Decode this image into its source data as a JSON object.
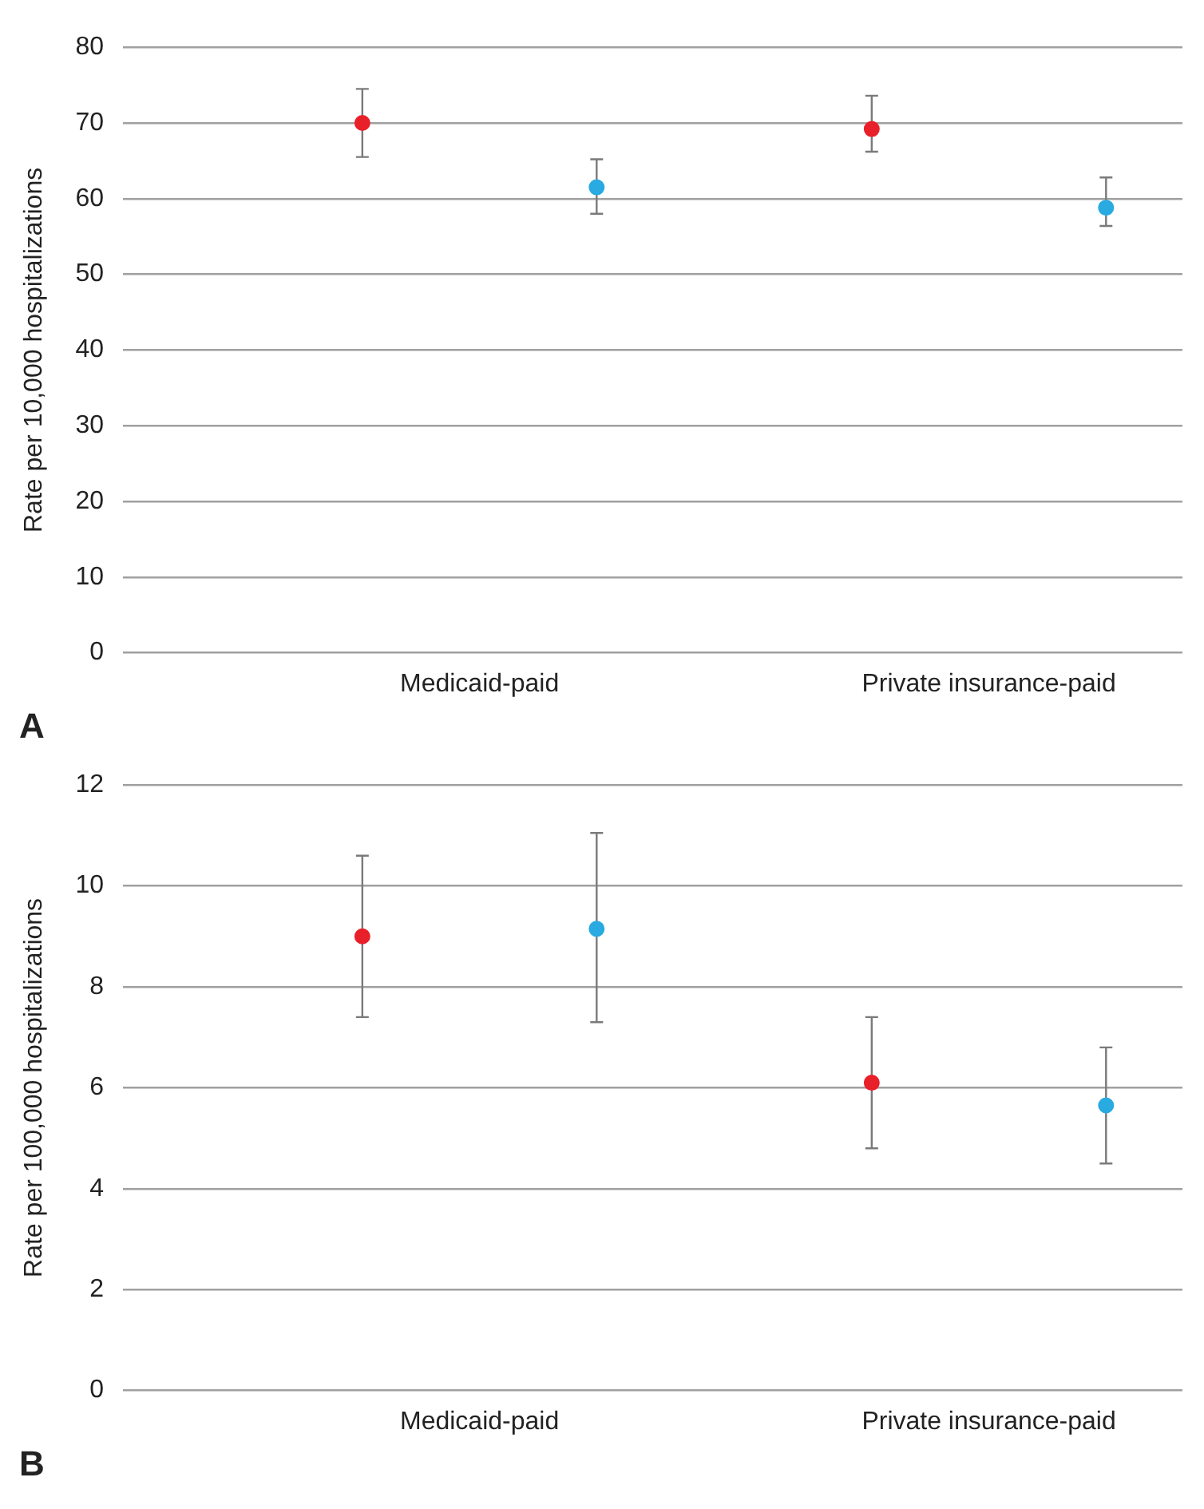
{
  "chart_data": [
    {
      "type": "scatter",
      "ylabel": "Rate per 10,000 hospitalizations",
      "categories": [
        "Medicaid-paid",
        "Private insurance-paid"
      ],
      "series": [
        {
          "color": "#e8202a",
          "values": [
            70,
            69.2
          ],
          "errors": [
            [
              65.5,
              74.5
            ],
            [
              66.2,
              73.6
            ]
          ]
        },
        {
          "color": "#29aae1",
          "values": [
            61.5,
            58.8
          ],
          "errors": [
            [
              58,
              65.2
            ],
            [
              56.4,
              62.8
            ]
          ]
        }
      ],
      "ylim": [
        0,
        80
      ],
      "yticks": [
        0,
        10,
        20,
        30,
        40,
        50,
        60,
        70,
        80
      ],
      "grid": "y",
      "legend": false,
      "marker": "circle",
      "annotations": [
        "A"
      ]
    },
    {
      "type": "scatter",
      "ylabel": "Rate per 100,000 hospitalizations",
      "categories": [
        "Medicaid-paid",
        "Private insurance-paid"
      ],
      "series": [
        {
          "color": "#e8202a",
          "values": [
            9.0,
            6.1
          ],
          "errors": [
            [
              7.4,
              10.6
            ],
            [
              4.8,
              7.4
            ]
          ]
        },
        {
          "color": "#29aae1",
          "values": [
            9.15,
            5.65
          ],
          "errors": [
            [
              7.3,
              11.05
            ],
            [
              4.5,
              6.8
            ]
          ]
        }
      ],
      "ylim": [
        0,
        12
      ],
      "yticks": [
        0,
        2,
        4,
        6,
        8,
        10,
        12
      ],
      "grid": "y",
      "legend": false,
      "marker": "circle",
      "annotations": [
        "B"
      ]
    }
  ]
}
